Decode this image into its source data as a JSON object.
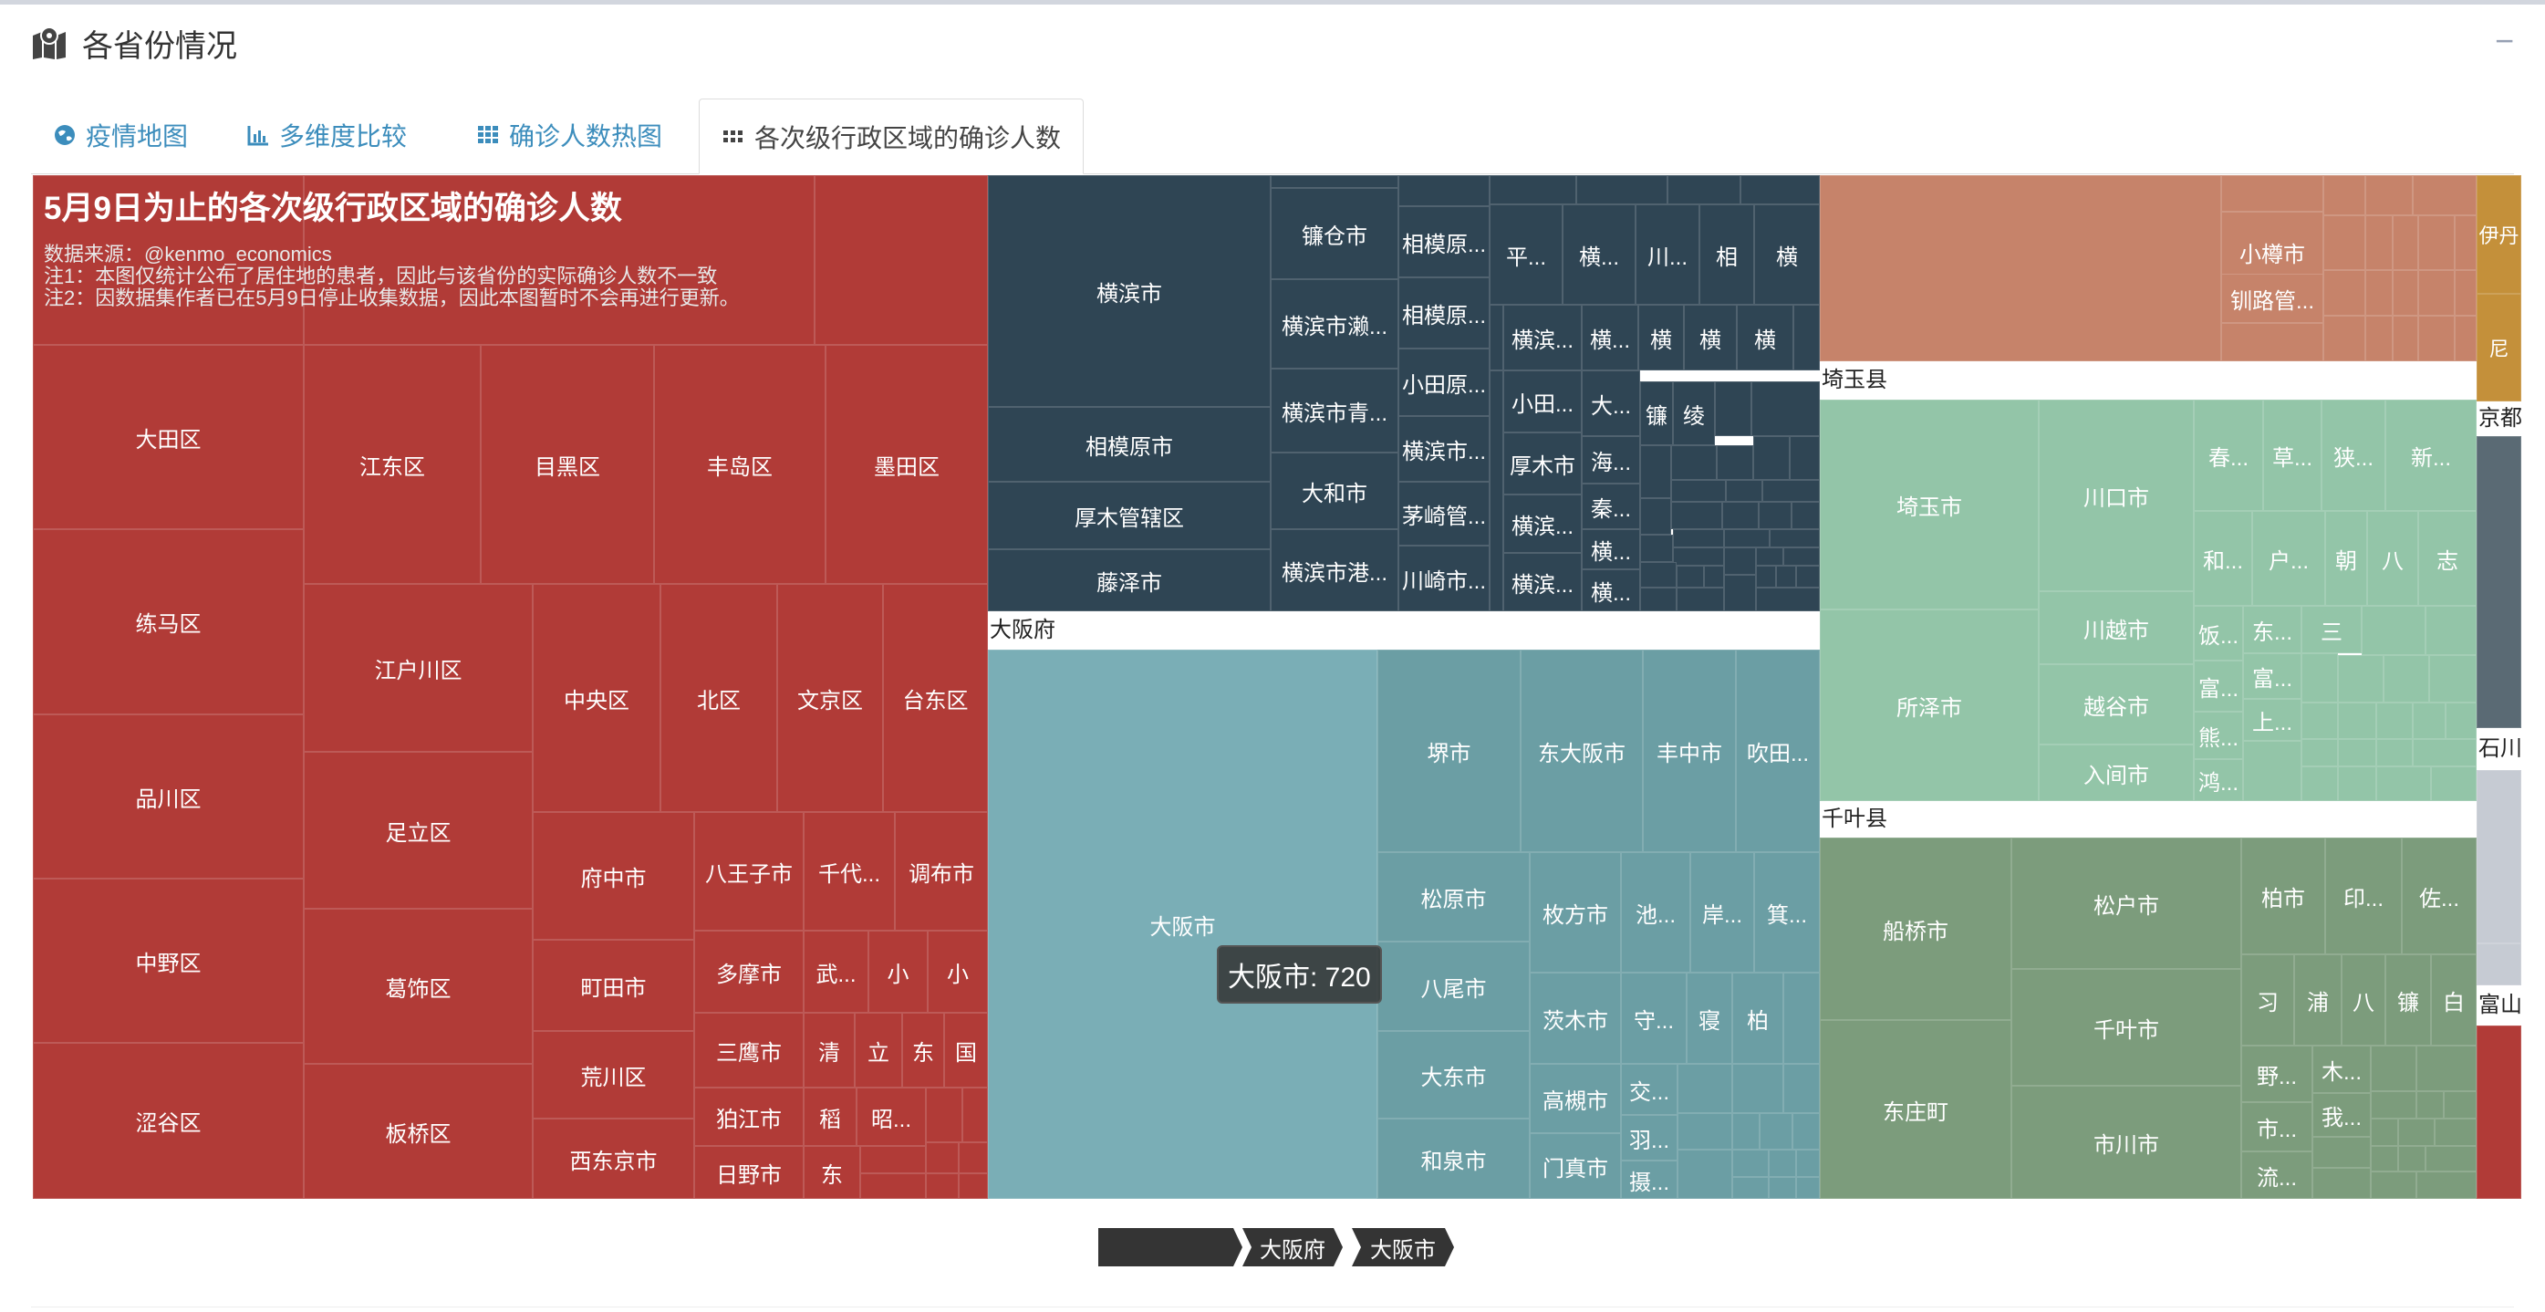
{
  "title": "各省份情况",
  "collapse": "−",
  "tabs": [
    {
      "label": "疫情地图",
      "icon": "globe-icon"
    },
    {
      "label": "多维度比较",
      "icon": "bar-chart-icon"
    },
    {
      "label": "确诊人数热图",
      "icon": "grid-icon"
    },
    {
      "label": "各次级行政区域的确诊人数",
      "icon": "dots-grid-icon",
      "active": true
    }
  ],
  "chart_data": {
    "type": "treemap",
    "title": "5月9日为止的各次级行政区域的确诊人数",
    "subtitle": [
      "数据来源：@kenmo_economics",
      "注1：本图仅统计公布了居住地的患者，因此与该省份的实际确诊人数不一致",
      "注2：因数据集作者已在5月9日停止收集数据，因此本图暂时不会再进行更新。"
    ],
    "tooltip": "大阪市: 720",
    "breadcrumb": [
      "",
      "大阪府",
      "大阪市"
    ],
    "groups": [
      "大阪府",
      "埼玉县",
      "千叶县",
      "京都",
      "石川",
      "富山"
    ],
    "cells": [
      {
        "label": "大田区"
      },
      {
        "label": "练马区"
      },
      {
        "label": "品川区"
      },
      {
        "label": "中野区"
      },
      {
        "label": "涩谷区"
      },
      {
        "label": "江东区"
      },
      {
        "label": "目黑区"
      },
      {
        "label": "丰岛区"
      },
      {
        "label": "墨田区"
      },
      {
        "label": "江户川区"
      },
      {
        "label": "中央区"
      },
      {
        "label": "北区"
      },
      {
        "label": "文京区"
      },
      {
        "label": "台东区"
      },
      {
        "label": "足立区"
      },
      {
        "label": "府中市"
      },
      {
        "label": "八王子市"
      },
      {
        "label": "千代..."
      },
      {
        "label": "调布市"
      },
      {
        "label": "葛饰区"
      },
      {
        "label": "町田市"
      },
      {
        "label": "多摩市"
      },
      {
        "label": "武..."
      },
      {
        "label": "小"
      },
      {
        "label": "小"
      },
      {
        "label": "荒川区"
      },
      {
        "label": "三鹰市"
      },
      {
        "label": "清"
      },
      {
        "label": "立"
      },
      {
        "label": "东"
      },
      {
        "label": "国"
      },
      {
        "label": "板桥区"
      },
      {
        "label": "西东京市"
      },
      {
        "label": "狛江市"
      },
      {
        "label": "稻"
      },
      {
        "label": "昭..."
      },
      {
        "label": "日野市"
      },
      {
        "label": "东"
      },
      {
        "label": "横滨市"
      },
      {
        "label": "相模原市"
      },
      {
        "label": "厚木管辖区"
      },
      {
        "label": "藤泽市"
      },
      {
        "label": "镰仓市"
      },
      {
        "label": "横滨市濑..."
      },
      {
        "label": "横滨市青..."
      },
      {
        "label": "大和市"
      },
      {
        "label": "横滨市港..."
      },
      {
        "label": "相模原..."
      },
      {
        "label": "相模原..."
      },
      {
        "label": "小田原..."
      },
      {
        "label": "横滨市..."
      },
      {
        "label": "茅崎管..."
      },
      {
        "label": "川崎市..."
      },
      {
        "label": "平..."
      },
      {
        "label": "横..."
      },
      {
        "label": "川..."
      },
      {
        "label": "相"
      },
      {
        "label": "横"
      },
      {
        "label": "横滨..."
      },
      {
        "label": "横..."
      },
      {
        "label": "横"
      },
      {
        "label": "横"
      },
      {
        "label": "横"
      },
      {
        "label": "小田..."
      },
      {
        "label": "大..."
      },
      {
        "label": "镰"
      },
      {
        "label": "绫"
      },
      {
        "label": "厚木市"
      },
      {
        "label": "海..."
      },
      {
        "label": "横滨..."
      },
      {
        "label": "秦..."
      },
      {
        "label": "横..."
      },
      {
        "label": "横滨..."
      },
      {
        "label": "横..."
      },
      {
        "label": "大阪市"
      },
      {
        "label": "堺市"
      },
      {
        "label": "东大阪市"
      },
      {
        "label": "丰中市"
      },
      {
        "label": "吹田..."
      },
      {
        "label": "松原市"
      },
      {
        "label": "枚方市"
      },
      {
        "label": "池..."
      },
      {
        "label": "岸..."
      },
      {
        "label": "箕..."
      },
      {
        "label": "八尾市"
      },
      {
        "label": "茨木市"
      },
      {
        "label": "守..."
      },
      {
        "label": "寝"
      },
      {
        "label": "柏"
      },
      {
        "label": "大东市"
      },
      {
        "label": "高槻市"
      },
      {
        "label": "交..."
      },
      {
        "label": "羽..."
      },
      {
        "label": "和泉市"
      },
      {
        "label": "门真市"
      },
      {
        "label": "摄..."
      },
      {
        "label": "小樽市"
      },
      {
        "label": "钏路管..."
      },
      {
        "label": "伊丹"
      },
      {
        "label": "尼"
      },
      {
        "label": "埼玉市"
      },
      {
        "label": "所泽市"
      },
      {
        "label": "川口市"
      },
      {
        "label": "川越市"
      },
      {
        "label": "越谷市"
      },
      {
        "label": "入间市"
      },
      {
        "label": "春..."
      },
      {
        "label": "草..."
      },
      {
        "label": "狭..."
      },
      {
        "label": "新..."
      },
      {
        "label": "和..."
      },
      {
        "label": "户..."
      },
      {
        "label": "朝"
      },
      {
        "label": "八"
      },
      {
        "label": "志"
      },
      {
        "label": "饭..."
      },
      {
        "label": "东..."
      },
      {
        "label": "三"
      },
      {
        "label": "富..."
      },
      {
        "label": "富..."
      },
      {
        "label": "上..."
      },
      {
        "label": "熊..."
      },
      {
        "label": "鸿..."
      },
      {
        "label": "船桥市"
      },
      {
        "label": "东庄町"
      },
      {
        "label": "松户市"
      },
      {
        "label": "千叶市"
      },
      {
        "label": "市川市"
      },
      {
        "label": "柏市"
      },
      {
        "label": "印..."
      },
      {
        "label": "佐..."
      },
      {
        "label": "习"
      },
      {
        "label": "浦"
      },
      {
        "label": "八"
      },
      {
        "label": "镰"
      },
      {
        "label": "白"
      },
      {
        "label": "野..."
      },
      {
        "label": "木..."
      },
      {
        "label": "市..."
      },
      {
        "label": "我..."
      },
      {
        "label": "流..."
      }
    ],
    "colors": {
      "tokyo": "#b13b37",
      "kanagawa": "#2f4554",
      "osaka_city": "#7aaeb6",
      "osaka": "#6b9ea4",
      "hokkaido": "#c6836a",
      "saitama": "#93c5a8",
      "chiba": "#7c9c7c",
      "hyogo": "#c4903a",
      "kyoto": "#5a6a74",
      "ishikawa": "#c6cbd3",
      "toyama": "#b13b37"
    }
  }
}
